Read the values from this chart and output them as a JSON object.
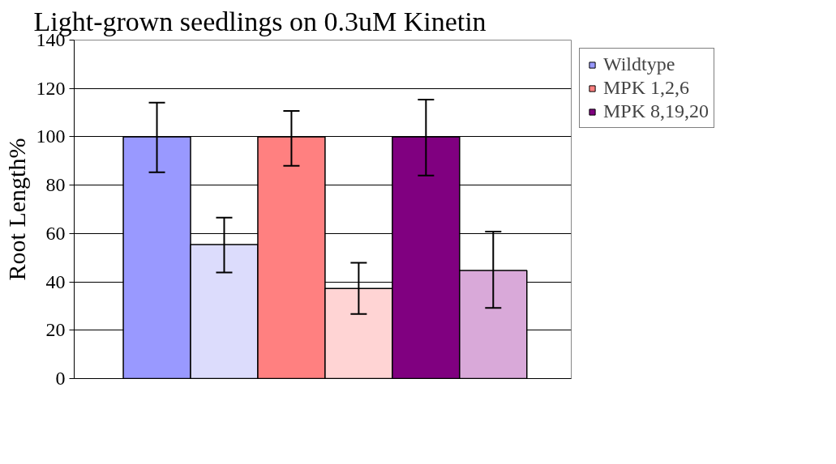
{
  "chart_data": {
    "type": "bar",
    "title": "Light-grown seedlings on 0.3uM Kinetin",
    "ylabel": "Root Length%",
    "categories": [
      null,
      null,
      null,
      null,
      null,
      null
    ],
    "series": [
      {
        "name": "Wildtype",
        "color": "#9999ff",
        "colors": [
          "#9999ff",
          "#dcdcfc",
          null,
          null,
          null,
          null
        ],
        "values": [
          100,
          55.4,
          null,
          null,
          null,
          null
        ],
        "errors": [
          [
            85.3,
            114.1
          ],
          [
            43.9,
            66.6
          ],
          null,
          null,
          null,
          null
        ]
      },
      {
        "name": "MPK 1,2,6",
        "color": "#ff8080",
        "colors": [
          null,
          null,
          "#ff8080",
          "#ffd4d4",
          null,
          null
        ],
        "values": [
          null,
          null,
          100,
          37.3,
          null,
          null
        ],
        "errors": [
          null,
          null,
          [
            88.0,
            110.7
          ],
          [
            26.7,
            47.9
          ],
          null,
          null
        ]
      },
      {
        "name": "MPK 8,19,20",
        "color": "#800080",
        "colors": [
          null,
          null,
          null,
          null,
          "#800080",
          "#d9a9d9"
        ],
        "values": [
          null,
          null,
          null,
          null,
          100,
          44.7
        ],
        "errors": [
          null,
          null,
          null,
          null,
          [
            84.0,
            115.4
          ],
          [
            29.2,
            60.8
          ]
        ]
      }
    ],
    "ylim": [
      0,
      140
    ],
    "yticks": [
      0,
      20,
      40,
      60,
      80,
      100,
      120,
      140
    ],
    "grid": "y",
    "legend": "right"
  }
}
